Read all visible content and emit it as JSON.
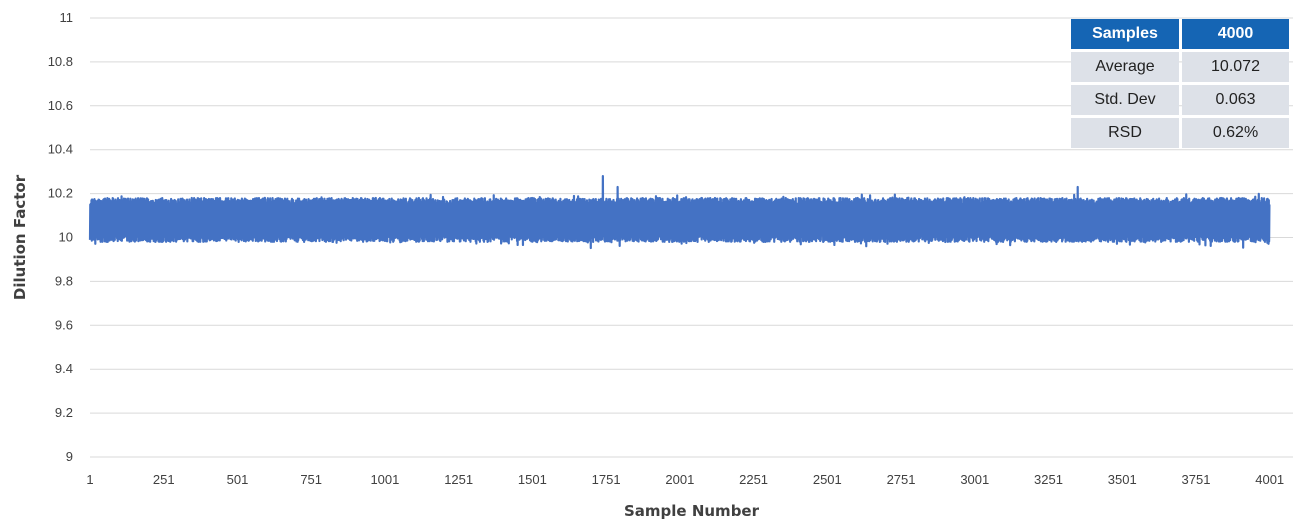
{
  "chart_data": {
    "type": "line",
    "title": "",
    "xlabel": "Sample Number",
    "ylabel": "Dilution Factor",
    "xlim": [
      1,
      4080
    ],
    "ylim": [
      9,
      11
    ],
    "yticks": [
      "9",
      "9.2",
      "9.4",
      "9.6",
      "9.8",
      "10",
      "10.2",
      "10.4",
      "10.6",
      "10.8",
      "11"
    ],
    "xticks": [
      "1",
      "251",
      "501",
      "751",
      "1001",
      "1251",
      "1501",
      "1751",
      "2001",
      "2251",
      "2501",
      "2751",
      "3001",
      "3251",
      "3501",
      "3751",
      "4001"
    ],
    "grid": true,
    "legend": "none",
    "series_color": "#4472c4",
    "series": [
      {
        "x": [
          1,
          100,
          200,
          251,
          300,
          400,
          501,
          600,
          700,
          751,
          800,
          900,
          1001,
          1100,
          1200,
          1251,
          1300,
          1400,
          1501,
          1600,
          1700,
          1740,
          1751,
          1790,
          1800,
          1900,
          2001,
          2100,
          2200,
          2251,
          2300,
          2400,
          2501,
          2600,
          2700,
          2751,
          2800,
          2900,
          3001,
          3100,
          3200,
          3251,
          3300,
          3350,
          3400,
          3501,
          3600,
          3700,
          3751,
          3800,
          3900,
          4001,
          4080
        ],
        "y": [
          10.07,
          10.06,
          10.08,
          10.07,
          10.06,
          10.07,
          10.07,
          10.08,
          10.06,
          10.07,
          10.08,
          10.07,
          10.08,
          10.07,
          10.06,
          10.07,
          10.08,
          10.07,
          10.09,
          10.08,
          10.07,
          10.28,
          10.08,
          10.23,
          10.07,
          10.08,
          10.07,
          10.08,
          10.07,
          10.09,
          10.08,
          10.07,
          10.08,
          10.07,
          10.08,
          10.07,
          10.07,
          10.06,
          10.07,
          10.08,
          10.07,
          10.06,
          10.08,
          10.23,
          10.08,
          10.09,
          10.08,
          10.07,
          10.06,
          10.08,
          10.07,
          10.08,
          10.07
        ]
      }
    ],
    "noise_band": {
      "typical_low": 9.98,
      "typical_high": 10.18,
      "min": 9.94,
      "max": 10.28
    },
    "stats_table": {
      "header": [
        "Samples",
        "4000"
      ],
      "rows": [
        [
          "Average",
          "10.072"
        ],
        [
          "Std. Dev",
          "0.063"
        ],
        [
          "RSD",
          "0.62%"
        ]
      ]
    }
  }
}
